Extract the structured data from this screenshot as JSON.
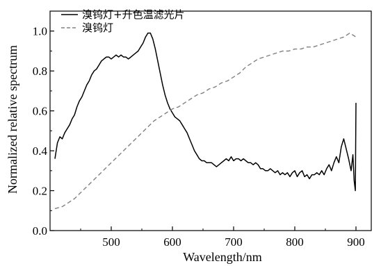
{
  "chart_data": {
    "type": "line",
    "title": "",
    "xlabel": "Wavelength/nm",
    "ylabel": "Normalized relative spectrum",
    "xlim": [
      400,
      925
    ],
    "ylim": [
      0,
      1.1
    ],
    "x_ticks": [
      500,
      600,
      700,
      800,
      900
    ],
    "y_ticks": [
      0.0,
      0.2,
      0.4,
      0.6,
      0.8,
      1.0
    ],
    "x_tick_labels": [
      "500",
      "600",
      "700",
      "800",
      "900"
    ],
    "y_tick_labels": [
      "0.0",
      "0.2",
      "0.4",
      "0.6",
      "0.8",
      "1.0"
    ],
    "grid": false,
    "legend_position": "top-left",
    "series": [
      {
        "name": "溴钨灯+升色温滤光片",
        "style": "solid",
        "color": "#000000",
        "x": [
          408,
          412,
          416,
          420,
          424,
          428,
          432,
          436,
          440,
          444,
          448,
          452,
          456,
          460,
          464,
          468,
          472,
          476,
          480,
          484,
          488,
          492,
          496,
          500,
          504,
          508,
          512,
          516,
          520,
          524,
          528,
          532,
          536,
          540,
          544,
          548,
          552,
          556,
          560,
          564,
          568,
          572,
          576,
          580,
          584,
          588,
          592,
          596,
          600,
          604,
          608,
          612,
          616,
          620,
          624,
          628,
          632,
          636,
          640,
          644,
          648,
          652,
          656,
          660,
          664,
          668,
          672,
          676,
          680,
          684,
          688,
          692,
          696,
          700,
          704,
          708,
          712,
          716,
          720,
          724,
          728,
          732,
          736,
          740,
          744,
          748,
          752,
          756,
          760,
          764,
          768,
          772,
          776,
          780,
          784,
          788,
          792,
          796,
          800,
          804,
          808,
          812,
          816,
          820,
          824,
          828,
          832,
          836,
          840,
          844,
          848,
          852,
          856,
          860,
          864,
          868,
          872,
          876,
          880,
          884,
          888,
          892,
          895,
          897,
          899,
          900
        ],
        "y": [
          0.36,
          0.44,
          0.47,
          0.46,
          0.49,
          0.51,
          0.53,
          0.56,
          0.58,
          0.62,
          0.65,
          0.67,
          0.7,
          0.73,
          0.75,
          0.78,
          0.8,
          0.81,
          0.83,
          0.85,
          0.86,
          0.87,
          0.87,
          0.86,
          0.87,
          0.88,
          0.87,
          0.88,
          0.87,
          0.87,
          0.86,
          0.87,
          0.88,
          0.89,
          0.9,
          0.92,
          0.94,
          0.97,
          0.99,
          0.99,
          0.96,
          0.91,
          0.85,
          0.79,
          0.73,
          0.68,
          0.64,
          0.61,
          0.59,
          0.57,
          0.56,
          0.55,
          0.53,
          0.51,
          0.49,
          0.46,
          0.43,
          0.4,
          0.38,
          0.36,
          0.35,
          0.35,
          0.34,
          0.34,
          0.34,
          0.33,
          0.32,
          0.33,
          0.34,
          0.35,
          0.36,
          0.35,
          0.37,
          0.35,
          0.36,
          0.36,
          0.35,
          0.36,
          0.35,
          0.34,
          0.34,
          0.33,
          0.34,
          0.33,
          0.31,
          0.31,
          0.3,
          0.3,
          0.31,
          0.3,
          0.29,
          0.3,
          0.28,
          0.29,
          0.28,
          0.29,
          0.27,
          0.29,
          0.3,
          0.27,
          0.29,
          0.3,
          0.27,
          0.28,
          0.26,
          0.28,
          0.28,
          0.29,
          0.28,
          0.3,
          0.28,
          0.31,
          0.33,
          0.3,
          0.34,
          0.37,
          0.34,
          0.42,
          0.46,
          0.41,
          0.36,
          0.3,
          0.38,
          0.25,
          0.2,
          0.64
        ]
      },
      {
        "name": "溴钨灯",
        "style": "dashed",
        "color": "#808080",
        "x": [
          408,
          420,
          430,
          440,
          450,
          460,
          470,
          480,
          490,
          500,
          510,
          520,
          530,
          540,
          550,
          560,
          570,
          580,
          590,
          600,
          610,
          620,
          630,
          640,
          650,
          660,
          670,
          680,
          690,
          700,
          710,
          720,
          730,
          740,
          750,
          760,
          770,
          780,
          790,
          800,
          810,
          820,
          830,
          840,
          850,
          860,
          870,
          880,
          890,
          900
        ],
        "y": [
          0.11,
          0.12,
          0.14,
          0.16,
          0.19,
          0.22,
          0.25,
          0.28,
          0.31,
          0.34,
          0.37,
          0.4,
          0.43,
          0.46,
          0.49,
          0.52,
          0.55,
          0.57,
          0.59,
          0.61,
          0.62,
          0.64,
          0.66,
          0.68,
          0.69,
          0.71,
          0.72,
          0.74,
          0.75,
          0.77,
          0.79,
          0.82,
          0.84,
          0.86,
          0.87,
          0.88,
          0.89,
          0.9,
          0.9,
          0.91,
          0.91,
          0.92,
          0.92,
          0.93,
          0.94,
          0.95,
          0.96,
          0.97,
          0.99,
          0.97
        ]
      }
    ]
  }
}
